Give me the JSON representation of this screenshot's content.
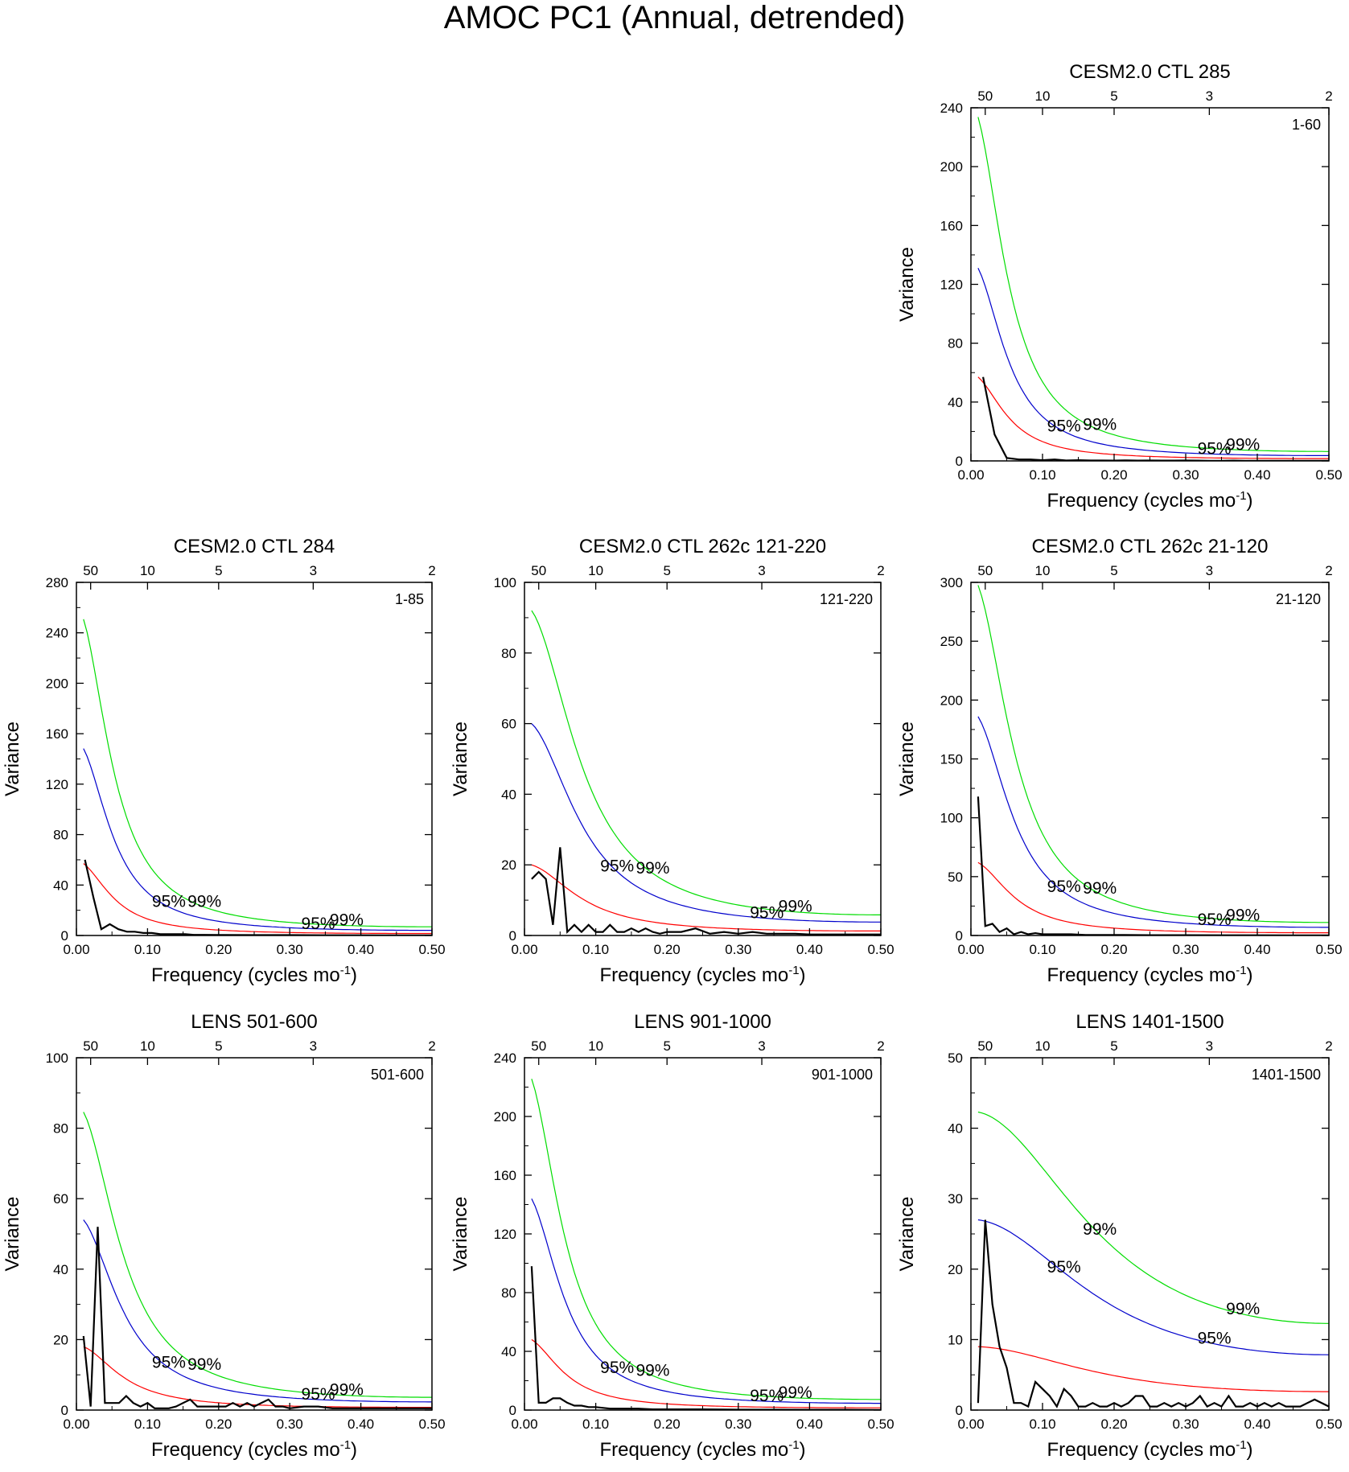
{
  "title": "AMOC PC1 (Annual, detrended)",
  "colors": {
    "spectrum": "#000000",
    "red_noise": "#ff0000",
    "ci95": "#0000cc",
    "ci99": "#00dd00",
    "axis": "#000000"
  },
  "chart_data": [
    {
      "type": "line",
      "id": "p285",
      "title": "CESM2.0 CTL 285",
      "label": "1-60",
      "xlabel": "Frequency (cycles mo",
      "xlabel_sup": "-1",
      "xlabel_end": ")",
      "ylabel": "Variance",
      "xlim": [
        0,
        0.5
      ],
      "ylim": [
        0,
        240
      ],
      "yticks": [
        0,
        40,
        80,
        120,
        160,
        200,
        240
      ],
      "xticks": [
        "0.00",
        "0.10",
        "0.20",
        "0.30",
        "0.40",
        "0.50"
      ],
      "top_ticks": [
        {
          "period": "50",
          "freq": 0.02
        },
        {
          "period": "10",
          "freq": 0.1
        },
        {
          "period": "5",
          "freq": 0.2
        },
        {
          "period": "3",
          "freq": 0.333
        },
        {
          "period": "2",
          "freq": 0.5
        }
      ],
      "ci_labels": [
        "95%",
        "99%"
      ],
      "red": {
        "r0": 57,
        "rho": 0.72
      },
      "k95": 2.3,
      "k99": 4.1,
      "spectrum": {
        "x": [
          0.017,
          0.033,
          0.05,
          0.067,
          0.083,
          0.1,
          0.117,
          0.133,
          0.15,
          0.167,
          0.183,
          0.2,
          0.217,
          0.233,
          0.25,
          0.267,
          0.283,
          0.3,
          0.317,
          0.333,
          0.35,
          0.367,
          0.383,
          0.4,
          0.417,
          0.433,
          0.45,
          0.467,
          0.483,
          0.5
        ],
        "y": [
          57,
          18,
          2,
          1,
          1,
          0.5,
          1,
          0.3,
          0.5,
          0.3,
          0.3,
          0.2,
          0.4,
          0.2,
          0.3,
          0.2,
          0.2,
          0.3,
          0.2,
          0.1,
          0.1,
          0.2,
          0.1,
          0.1,
          0.1,
          0.1,
          0.1,
          0.1,
          0.1,
          0.1
        ]
      }
    },
    {
      "type": "line",
      "id": "p284",
      "title": "CESM2.0 CTL 284",
      "label": "1-85",
      "xlabel": "Frequency (cycles mo",
      "xlabel_sup": "-1",
      "xlabel_end": ")",
      "ylabel": "Variance",
      "xlim": [
        0,
        0.5
      ],
      "ylim": [
        0,
        280
      ],
      "yticks": [
        0,
        40,
        80,
        120,
        160,
        200,
        240,
        280
      ],
      "xticks": [
        "0.00",
        "0.10",
        "0.20",
        "0.30",
        "0.40",
        "0.50"
      ],
      "top_ticks": [
        {
          "period": "50",
          "freq": 0.02
        },
        {
          "period": "10",
          "freq": 0.1
        },
        {
          "period": "5",
          "freq": 0.2
        },
        {
          "period": "3",
          "freq": 0.333
        },
        {
          "period": "2",
          "freq": 0.5
        }
      ],
      "ci_labels": [
        "95%",
        "99%"
      ],
      "red": {
        "r0": 57,
        "rho": 0.72
      },
      "k95": 2.6,
      "k99": 4.4,
      "spectrum": {
        "x": [
          0.012,
          0.024,
          0.035,
          0.047,
          0.059,
          0.071,
          0.082,
          0.094,
          0.106,
          0.118,
          0.129,
          0.141,
          0.153,
          0.165,
          0.176,
          0.2,
          0.25,
          0.3,
          0.35,
          0.4,
          0.45,
          0.5
        ],
        "y": [
          60,
          30,
          5,
          9,
          5,
          3,
          3,
          2,
          2,
          1,
          1,
          1,
          1,
          0.5,
          0.5,
          0.4,
          0.3,
          0.3,
          0.2,
          0.2,
          0.1,
          0.1
        ]
      }
    },
    {
      "type": "line",
      "id": "p262a",
      "title": "CESM2.0 CTL 262c 121-220",
      "label": "121-220",
      "xlabel": "Frequency (cycles mo",
      "xlabel_sup": "-1",
      "xlabel_end": ")",
      "ylabel": "Variance",
      "xlim": [
        0,
        0.5
      ],
      "ylim": [
        0,
        100
      ],
      "yticks": [
        0,
        20,
        40,
        60,
        80,
        100
      ],
      "xticks": [
        "0.00",
        "0.10",
        "0.20",
        "0.30",
        "0.40",
        "0.50"
      ],
      "top_ticks": [
        {
          "period": "50",
          "freq": 0.02
        },
        {
          "period": "10",
          "freq": 0.1
        },
        {
          "period": "5",
          "freq": 0.2
        },
        {
          "period": "3",
          "freq": 0.333
        },
        {
          "period": "2",
          "freq": 0.5
        }
      ],
      "ci_labels": [
        "95%",
        "99%"
      ],
      "red": {
        "r0": 20,
        "rho": 0.6
      },
      "k95": 3.0,
      "k99": 4.6,
      "spectrum": {
        "x": [
          0.01,
          0.02,
          0.03,
          0.04,
          0.05,
          0.06,
          0.07,
          0.08,
          0.09,
          0.1,
          0.11,
          0.12,
          0.13,
          0.14,
          0.15,
          0.16,
          0.17,
          0.18,
          0.19,
          0.2,
          0.22,
          0.24,
          0.26,
          0.28,
          0.3,
          0.32,
          0.34,
          0.36,
          0.38,
          0.4,
          0.43,
          0.46,
          0.5
        ],
        "y": [
          16,
          18,
          16,
          3,
          25,
          1,
          3,
          1,
          3,
          1,
          1,
          3,
          1,
          1,
          2,
          1,
          2,
          1,
          0.5,
          1,
          1,
          2,
          0.5,
          1,
          0.5,
          1,
          0.5,
          0.5,
          0.5,
          0.3,
          0.3,
          0.3,
          0.3
        ]
      }
    },
    {
      "type": "line",
      "id": "p262b",
      "title": "CESM2.0 CTL 262c 21-120",
      "label": "21-120",
      "xlabel": "Frequency (cycles mo",
      "xlabel_sup": "-1",
      "xlabel_end": ")",
      "ylabel": "Variance",
      "xlim": [
        0,
        0.5
      ],
      "ylim": [
        0,
        300
      ],
      "yticks": [
        0,
        50,
        100,
        150,
        200,
        250,
        300
      ],
      "xticks": [
        "0.00",
        "0.10",
        "0.20",
        "0.30",
        "0.40",
        "0.50"
      ],
      "top_ticks": [
        {
          "period": "50",
          "freq": 0.02
        },
        {
          "period": "10",
          "freq": 0.1
        },
        {
          "period": "5",
          "freq": 0.2
        },
        {
          "period": "3",
          "freq": 0.333
        },
        {
          "period": "2",
          "freq": 0.5
        }
      ],
      "ci_labels": [
        "95%",
        "99%"
      ],
      "red": {
        "r0": 62,
        "rho": 0.68
      },
      "k95": 3.0,
      "k99": 4.8,
      "spectrum": {
        "x": [
          0.01,
          0.02,
          0.03,
          0.04,
          0.05,
          0.06,
          0.07,
          0.08,
          0.09,
          0.1,
          0.11,
          0.12,
          0.14,
          0.16,
          0.18,
          0.2,
          0.25,
          0.3,
          0.35,
          0.4,
          0.45,
          0.5
        ],
        "y": [
          118,
          8,
          10,
          3,
          6,
          1,
          3,
          1,
          2,
          1,
          1,
          1,
          1,
          0.5,
          0.5,
          0.5,
          0.3,
          0.3,
          0.2,
          0.2,
          0.1,
          0.1
        ]
      }
    },
    {
      "type": "line",
      "id": "lens501",
      "title": "LENS 501-600",
      "label": "501-600",
      "xlabel": "Frequency (cycles mo",
      "xlabel_sup": "-1",
      "xlabel_end": ")",
      "ylabel": "Variance",
      "xlim": [
        0,
        0.5
      ],
      "ylim": [
        0,
        100
      ],
      "yticks": [
        0,
        20,
        40,
        60,
        80,
        100
      ],
      "xticks": [
        "0.00",
        "0.10",
        "0.20",
        "0.30",
        "0.40",
        "0.50"
      ],
      "top_ticks": [
        {
          "period": "50",
          "freq": 0.02
        },
        {
          "period": "10",
          "freq": 0.1
        },
        {
          "period": "5",
          "freq": 0.2
        },
        {
          "period": "3",
          "freq": 0.333
        },
        {
          "period": "2",
          "freq": 0.5
        }
      ],
      "ci_labels": [
        "95%",
        "99%"
      ],
      "red": {
        "r0": 18,
        "rho": 0.66
      },
      "k95": 3.0,
      "k99": 4.7,
      "spectrum": {
        "x": [
          0.01,
          0.02,
          0.03,
          0.04,
          0.05,
          0.06,
          0.07,
          0.08,
          0.09,
          0.1,
          0.11,
          0.12,
          0.13,
          0.14,
          0.15,
          0.16,
          0.17,
          0.18,
          0.19,
          0.2,
          0.21,
          0.22,
          0.23,
          0.24,
          0.25,
          0.26,
          0.27,
          0.28,
          0.29,
          0.3,
          0.32,
          0.34,
          0.36,
          0.38,
          0.4,
          0.42,
          0.44,
          0.46,
          0.48,
          0.5
        ],
        "y": [
          21,
          1,
          52,
          2,
          2,
          2,
          4,
          2,
          1,
          2,
          0.5,
          0.5,
          0.5,
          1,
          2,
          3,
          1,
          1,
          1,
          1,
          1,
          2,
          1,
          2,
          1,
          2,
          3,
          1,
          1,
          0.5,
          1,
          1,
          0.5,
          0.5,
          0.5,
          0.5,
          0.5,
          0.5,
          0.5,
          0.5
        ]
      }
    },
    {
      "type": "line",
      "id": "lens901",
      "title": "LENS 901-1000",
      "label": "901-1000",
      "xlabel": "Frequency (cycles mo",
      "xlabel_sup": "-1",
      "xlabel_end": ")",
      "ylabel": "Variance",
      "xlim": [
        0,
        0.5
      ],
      "ylim": [
        0,
        240
      ],
      "yticks": [
        0,
        40,
        80,
        120,
        160,
        200,
        240
      ],
      "xticks": [
        "0.00",
        "0.10",
        "0.20",
        "0.30",
        "0.40",
        "0.50"
      ],
      "top_ticks": [
        {
          "period": "50",
          "freq": 0.02
        },
        {
          "period": "10",
          "freq": 0.1
        },
        {
          "period": "5",
          "freq": 0.2
        },
        {
          "period": "3",
          "freq": 0.333
        },
        {
          "period": "2",
          "freq": 0.5
        }
      ],
      "ci_labels": [
        "95%",
        "99%"
      ],
      "red": {
        "r0": 48,
        "rho": 0.7
      },
      "k95": 3.0,
      "k99": 4.7,
      "spectrum": {
        "x": [
          0.01,
          0.02,
          0.03,
          0.04,
          0.05,
          0.06,
          0.07,
          0.08,
          0.09,
          0.1,
          0.12,
          0.14,
          0.16,
          0.18,
          0.2,
          0.25,
          0.3,
          0.35,
          0.4,
          0.45,
          0.5
        ],
        "y": [
          98,
          5,
          5,
          8,
          8,
          5,
          3,
          3,
          2,
          2,
          1,
          1,
          1,
          0.5,
          0.5,
          0.5,
          0.3,
          0.3,
          0.2,
          0.2,
          0.1
        ]
      }
    },
    {
      "type": "line",
      "id": "lens1401",
      "title": "LENS 1401-1500",
      "label": "1401-1500",
      "xlabel": "Frequency (cycles mo",
      "xlabel_sup": "-1",
      "xlabel_end": ")",
      "ylabel": "Variance",
      "xlim": [
        0,
        0.5
      ],
      "ylim": [
        0,
        50
      ],
      "yticks": [
        0,
        10,
        20,
        30,
        40,
        50
      ],
      "xticks": [
        "0.00",
        "0.10",
        "0.20",
        "0.30",
        "0.40",
        "0.50"
      ],
      "top_ticks": [
        {
          "period": "50",
          "freq": 0.02
        },
        {
          "period": "10",
          "freq": 0.1
        },
        {
          "period": "5",
          "freq": 0.2
        },
        {
          "period": "3",
          "freq": 0.333
        },
        {
          "period": "2",
          "freq": 0.5
        }
      ],
      "ci_labels": [
        "95%",
        "99%"
      ],
      "red": {
        "r0": 9,
        "rho": 0.3
      },
      "k95": 3.0,
      "k99": 4.7,
      "spectrum": {
        "x": [
          0.01,
          0.02,
          0.03,
          0.04,
          0.05,
          0.06,
          0.07,
          0.08,
          0.09,
          0.1,
          0.11,
          0.12,
          0.13,
          0.14,
          0.15,
          0.16,
          0.17,
          0.18,
          0.19,
          0.2,
          0.21,
          0.22,
          0.23,
          0.24,
          0.25,
          0.26,
          0.27,
          0.28,
          0.29,
          0.3,
          0.31,
          0.32,
          0.33,
          0.34,
          0.35,
          0.36,
          0.37,
          0.38,
          0.39,
          0.4,
          0.41,
          0.42,
          0.43,
          0.44,
          0.45,
          0.46,
          0.47,
          0.48,
          0.49,
          0.5
        ],
        "y": [
          1,
          27,
          15,
          9,
          6,
          1,
          1,
          0.5,
          4,
          3,
          2,
          0.5,
          3,
          2,
          0.5,
          0.5,
          1,
          0.5,
          0.5,
          1,
          0.5,
          1,
          2,
          2,
          0.5,
          0.5,
          1,
          0.5,
          1,
          0.5,
          1,
          2,
          0.5,
          1,
          0.5,
          2,
          0.5,
          0.5,
          1,
          0.5,
          1,
          0.5,
          1,
          0.5,
          0.5,
          0.5,
          1,
          1.5,
          1,
          0.5
        ]
      }
    }
  ]
}
